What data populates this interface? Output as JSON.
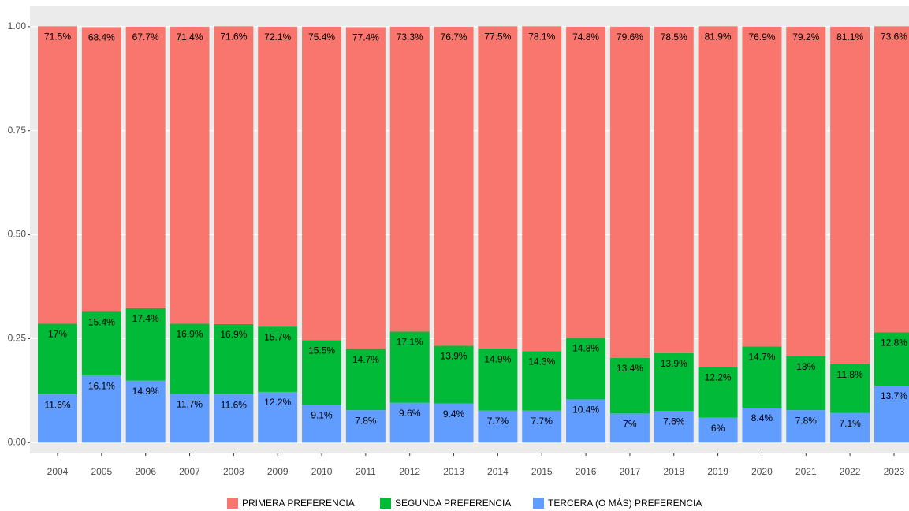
{
  "chart_data": {
    "type": "stacked_bar",
    "categories": [
      "2004",
      "2005",
      "2006",
      "2007",
      "2008",
      "2009",
      "2010",
      "2011",
      "2012",
      "2013",
      "2014",
      "2015",
      "2016",
      "2017",
      "2018",
      "2019",
      "2020",
      "2021",
      "2022",
      "2023"
    ],
    "series": [
      {
        "name": "PRIMERA PREFERENCIA",
        "color": "#F8766D",
        "values": [
          0.715,
          0.684,
          0.677,
          0.714,
          0.716,
          0.721,
          0.754,
          0.774,
          0.733,
          0.767,
          0.775,
          0.781,
          0.748,
          0.796,
          0.785,
          0.819,
          0.769,
          0.792,
          0.811,
          0.736
        ],
        "value_labels": [
          "71.5%",
          "68.4%",
          "67.7%",
          "71.4%",
          "71.6%",
          "72.1%",
          "75.4%",
          "77.4%",
          "73.3%",
          "76.7%",
          "77.5%",
          "78.1%",
          "74.8%",
          "79.6%",
          "78.5%",
          "81.9%",
          "76.9%",
          "79.2%",
          "81.1%",
          "73.6%"
        ]
      },
      {
        "name": "SEGUNDA PREFERENCIA",
        "color": "#00BA38",
        "values": [
          0.17,
          0.154,
          0.174,
          0.169,
          0.169,
          0.157,
          0.155,
          0.147,
          0.171,
          0.139,
          0.149,
          0.143,
          0.148,
          0.134,
          0.139,
          0.122,
          0.147,
          0.13,
          0.118,
          0.128
        ],
        "value_labels": [
          "17%",
          "15.4%",
          "17.4%",
          "16.9%",
          "16.9%",
          "15.7%",
          "15.5%",
          "14.7%",
          "17.1%",
          "13.9%",
          "14.9%",
          "14.3%",
          "14.8%",
          "13.4%",
          "13.9%",
          "12.2%",
          "14.7%",
          "13%",
          "11.8%",
          "12.8%"
        ]
      },
      {
        "name": "TERCERA (O MÁS) PREFERENCIA",
        "color": "#619CFF",
        "values": [
          0.116,
          0.161,
          0.149,
          0.117,
          0.116,
          0.122,
          0.091,
          0.078,
          0.096,
          0.094,
          0.077,
          0.077,
          0.104,
          0.07,
          0.076,
          0.06,
          0.084,
          0.078,
          0.071,
          0.137
        ],
        "value_labels": [
          "11.6%",
          "16.1%",
          "14.9%",
          "11.7%",
          "11.6%",
          "12.2%",
          "9.1%",
          "7.8%",
          "9.6%",
          "9.4%",
          "7.7%",
          "7.7%",
          "10.4%",
          "7%",
          "7.6%",
          "6%",
          "8.4%",
          "7.8%",
          "7.1%",
          "13.7%"
        ]
      }
    ],
    "ylim": [
      -0.026,
      1.049
    ],
    "yticks": [
      {
        "value": 0,
        "label": "0.00"
      },
      0.25,
      {
        "value": 0.5,
        "label": "0.50"
      },
      0.75,
      {
        "value": 1,
        "label": "1.00"
      }
    ],
    "grid": true,
    "legend": "bottom"
  }
}
